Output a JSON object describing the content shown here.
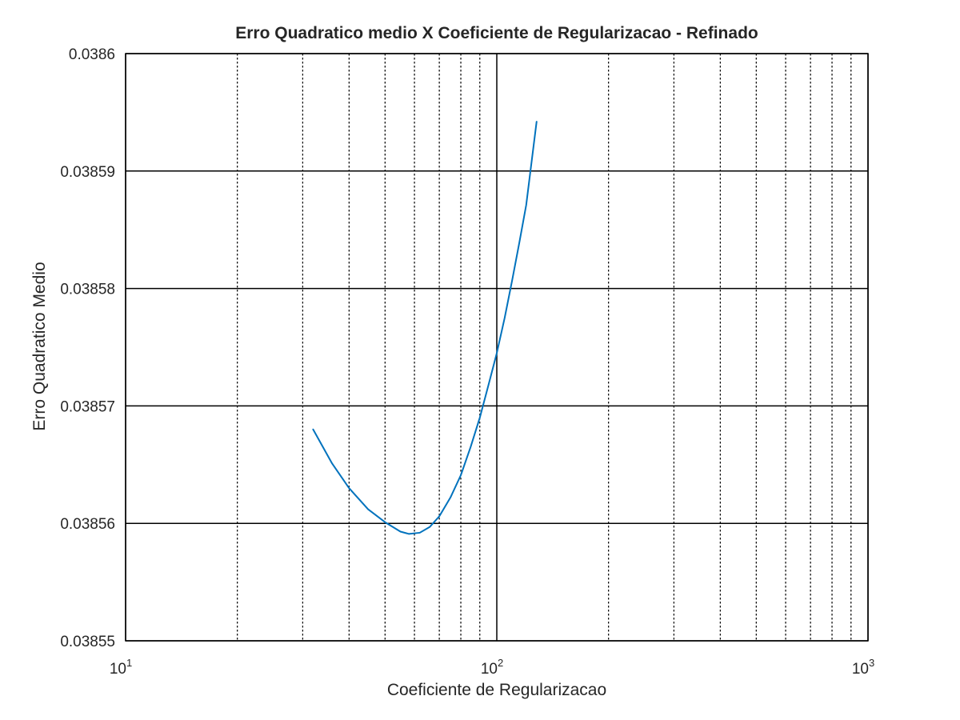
{
  "chart_data": {
    "type": "line",
    "title": "Erro Quadratico medio X Coeficiente de Regularizacao - Refinado",
    "xlabel": "Coeficiente de Regularizacao",
    "ylabel": "Erro Quadratico Medio",
    "xscale": "log",
    "xlim": [
      10,
      1000
    ],
    "ylim": [
      0.03855,
      0.0386
    ],
    "xticks": [
      {
        "base": "10",
        "exp": "1"
      },
      {
        "base": "10",
        "exp": "2"
      },
      {
        "base": "10",
        "exp": "3"
      }
    ],
    "yticks": [
      "0.03855",
      "0.03856",
      "0.03857",
      "0.03858",
      "0.03859",
      "0.0386"
    ],
    "yticks_values": [
      0.03855,
      0.03856,
      0.03857,
      0.03858,
      0.03859,
      0.0386
    ],
    "grid": true,
    "minor_grid": true,
    "series": [
      {
        "color": "#0072bd",
        "x": [
          32,
          36,
          40,
          45,
          50,
          55,
          58,
          62,
          66,
          70,
          75,
          80,
          85,
          90,
          95,
          100,
          105,
          110,
          115,
          120,
          128
        ],
        "y": [
          0.038568,
          0.0385651,
          0.038563,
          0.0385612,
          0.0385601,
          0.0385593,
          0.0385591,
          0.0385592,
          0.0385597,
          0.0385606,
          0.0385622,
          0.0385641,
          0.0385665,
          0.038569,
          0.0385718,
          0.0385745,
          0.0385775,
          0.0385807,
          0.0385839,
          0.0385871,
          0.0385942
        ]
      }
    ]
  }
}
